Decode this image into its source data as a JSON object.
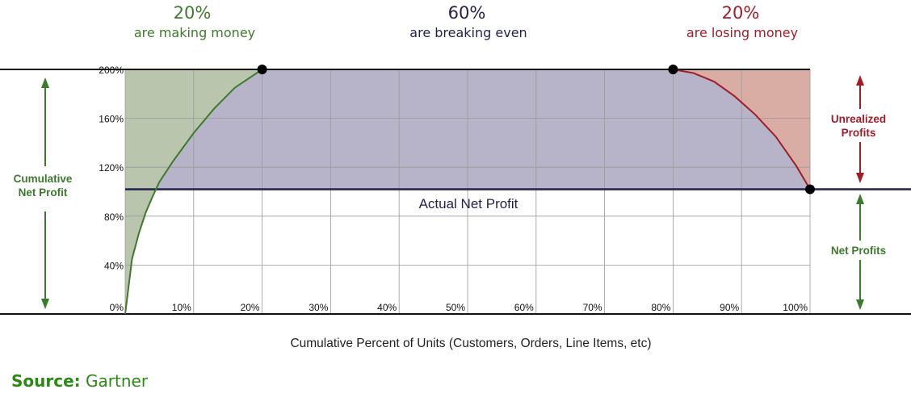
{
  "colors": {
    "green": "#3d7a2e",
    "green_fill": "#b9c5ad",
    "purple_fill": "#b7b3c8",
    "red": "#a01c28",
    "red_fill": "#d9ada3",
    "navy": "#23214d",
    "source_green": "#2a8a14"
  },
  "segments": [
    {
      "percent": "20%",
      "caption": "are making money"
    },
    {
      "percent": "60%",
      "caption": "are breaking even"
    },
    {
      "percent": "20%",
      "caption": "are losing money"
    }
  ],
  "left_annotation": {
    "line1": "Cumulative",
    "line2": "Net Profit"
  },
  "right_annotation": {
    "unrealized_line1": "Unrealized",
    "unrealized_line2": "Profits",
    "net_profits": "Net Profits"
  },
  "actual_label": "Actual Net Profit",
  "source": {
    "label": "Source:",
    "value": "Gartner"
  },
  "chart_data": {
    "type": "line",
    "xlabel": "Cumulative Percent of Units (Customers, Orders, Line Items, etc)",
    "ylabel": "",
    "xlim": [
      0,
      100
    ],
    "ylim": [
      0,
      200
    ],
    "x_ticks": [
      "10%",
      "20%",
      "30%",
      "40%",
      "50%",
      "60%",
      "70%",
      "80%",
      "90%",
      "100%"
    ],
    "y_ticks": [
      "0%",
      "40%",
      "80%",
      "120%",
      "160%",
      "200%"
    ],
    "x_tick_values": [
      10,
      20,
      30,
      40,
      50,
      60,
      70,
      80,
      90,
      100
    ],
    "y_tick_values": [
      0,
      40,
      80,
      120,
      160,
      200
    ],
    "actual_net_profit": 102,
    "series": [
      {
        "x": [
          0,
          1,
          2,
          3,
          4,
          5,
          7,
          10,
          13,
          16,
          20
        ],
        "y": [
          0,
          45,
          66,
          83,
          96,
          108,
          125,
          148,
          168,
          185,
          200
        ]
      },
      {
        "x": [
          20,
          80
        ],
        "y": [
          200,
          200
        ]
      },
      {
        "x": [
          80,
          83,
          86,
          89,
          92,
          95,
          98,
          100
        ],
        "y": [
          200,
          197,
          190,
          178,
          163,
          145,
          121,
          102
        ]
      }
    ],
    "key_points": [
      {
        "x": 20,
        "y": 200
      },
      {
        "x": 80,
        "y": 200
      },
      {
        "x": 100,
        "y": 102
      }
    ]
  }
}
